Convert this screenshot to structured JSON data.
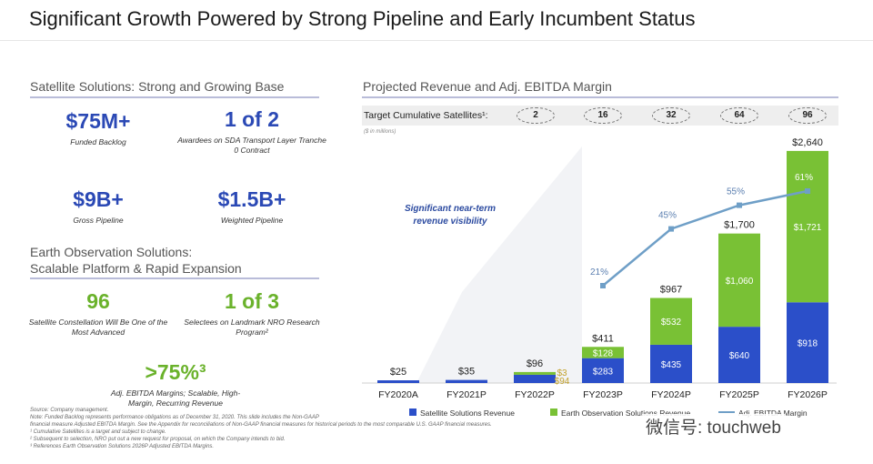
{
  "title": "Significant Growth Powered by Strong Pipeline and Early Incumbent Status",
  "satellite": {
    "heading": "Satellite Solutions: Strong and Growing Base",
    "kpis": [
      {
        "value": "$75M+",
        "caption": "Funded Backlog"
      },
      {
        "value": "1 of 2",
        "caption": "Awardees on SDA Transport Layer Tranche 0 Contract"
      },
      {
        "value": "$9B+",
        "caption": "Gross Pipeline"
      },
      {
        "value": "$1.5B+",
        "caption": "Weighted Pipeline"
      }
    ]
  },
  "earth": {
    "heading_line1": "Earth Observation Solutions:",
    "heading_line2": "Scalable Platform & Rapid Expansion",
    "kpis": [
      {
        "value": "96",
        "caption": "Satellite Constellation Will Be One of the Most Advanced"
      },
      {
        "value": "1 of 3",
        "caption": "Selectees on Landmark NRO Research Program²"
      },
      {
        "value": ">75%³",
        "caption": "Adj. EBITDA Margins; Scalable, High-Margin, Recurring Revenue"
      }
    ]
  },
  "footnotes": [
    "Source: Company management.",
    "Note: Funded Backlog represents performance obligations as of December 31, 2020. This slide includes the Non-GAAP",
    "financial measure Adjusted EBITDA Margin. See the Appendix for reconciliations of Non-GAAP financial measures for historical periods to the most comparable U.S. GAAP financial measures.",
    "¹ Cumulative Satellites is a target and subject to change.",
    "² Subsequent to selection, NRO put out a new request for proposal, on which the Company intends to bid.",
    "³ References Earth Observation Solutions 2026P Adjusted EBITDA Margins."
  ],
  "chart": {
    "heading": "Projected Revenue and Adj. EBITDA Margin",
    "target_label": "Target Cumulative Satellites¹:",
    "target_values": [
      "2",
      "16",
      "32",
      "64",
      "96"
    ],
    "units_note": "($ in millions)",
    "visibility_note": "Significant near-term revenue visibility",
    "watermark": "微信号: touchweb"
  },
  "chart_data": {
    "type": "bar",
    "stacked": true,
    "categories": [
      "FY2020A",
      "FY2021P",
      "FY2022P",
      "FY2023P",
      "FY2024P",
      "FY2025P",
      "FY2026P"
    ],
    "series": [
      {
        "name": "Satellite Solutions Revenue",
        "color": "#2b4fc9",
        "values": [
          25,
          35,
          94,
          283,
          435,
          640,
          918
        ]
      },
      {
        "name": "Earth Observation Solutions Revenue",
        "color": "#79c135",
        "values": [
          0,
          0,
          3,
          128,
          532,
          1060,
          1721
        ]
      }
    ],
    "segment_labels": [
      [
        "",
        "",
        "$94",
        "$283",
        "$435",
        "$640",
        "$918"
      ],
      [
        "",
        "",
        "$3",
        "$128",
        "$532",
        "$1,060",
        "$1,721"
      ]
    ],
    "totals": [
      "$25",
      "$35",
      "$96",
      "$411",
      "$967",
      "$1,700",
      "$2,640"
    ],
    "margin_series": {
      "name": "Adj. EBITDA Margin",
      "color": "#6f9fc7",
      "start_index": 3,
      "values": [
        21,
        45,
        55,
        61
      ],
      "labels": [
        "21%",
        "45%",
        "55%",
        "61%"
      ]
    },
    "ylim": [
      0,
      2700
    ],
    "legend_position": "bottom"
  }
}
